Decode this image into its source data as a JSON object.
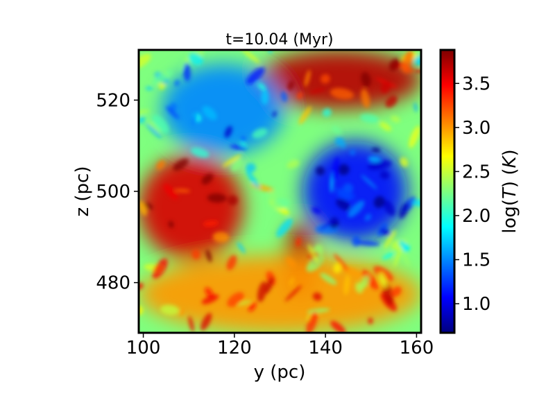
{
  "chart_data": {
    "type": "heatmap",
    "title": "t=10.04 (Myr)",
    "xlabel": "y (pc)",
    "ylabel": "z (pc)",
    "xlim": [
      99,
      161
    ],
    "ylim": [
      469,
      531
    ],
    "xticks": [
      100,
      120,
      140,
      160
    ],
    "yticks": [
      480,
      500,
      520
    ],
    "colorbar": {
      "label": "log(T) (K)",
      "label_math": [
        "log(",
        "T",
        ") (",
        "K",
        ")"
      ],
      "range": [
        0.67,
        3.88
      ],
      "ticks": [
        1.0,
        1.5,
        2.0,
        2.5,
        3.0,
        3.5
      ],
      "tick_labels": [
        "1.0",
        "1.5",
        "2.0",
        "2.5",
        "3.0",
        "3.5"
      ],
      "colormap": "jet"
    },
    "colormap_stops": [
      "#00007f",
      "#0000ff",
      "#007fff",
      "#00ffff",
      "#7fff7f",
      "#ffff00",
      "#ff7f00",
      "#ff0000",
      "#7f0000"
    ],
    "regions": [
      {
        "x": [
          125,
          161
        ],
        "y": [
          518,
          531
        ],
        "value": 3.7
      },
      {
        "x": [
          99,
          122
        ],
        "y": [
          485,
          508
        ],
        "value": 3.6
      },
      {
        "x": [
          131,
          138
        ],
        "y": [
          476,
          493
        ],
        "value": 3.7
      },
      {
        "x": [
          99,
          161
        ],
        "y": [
          469,
          486
        ],
        "value": 3.0
      },
      {
        "x": [
          135,
          158
        ],
        "y": [
          489,
          511
        ],
        "value": 1.1
      },
      {
        "x": [
          104,
          131
        ],
        "y": [
          508,
          528
        ],
        "value": 1.5
      }
    ]
  }
}
